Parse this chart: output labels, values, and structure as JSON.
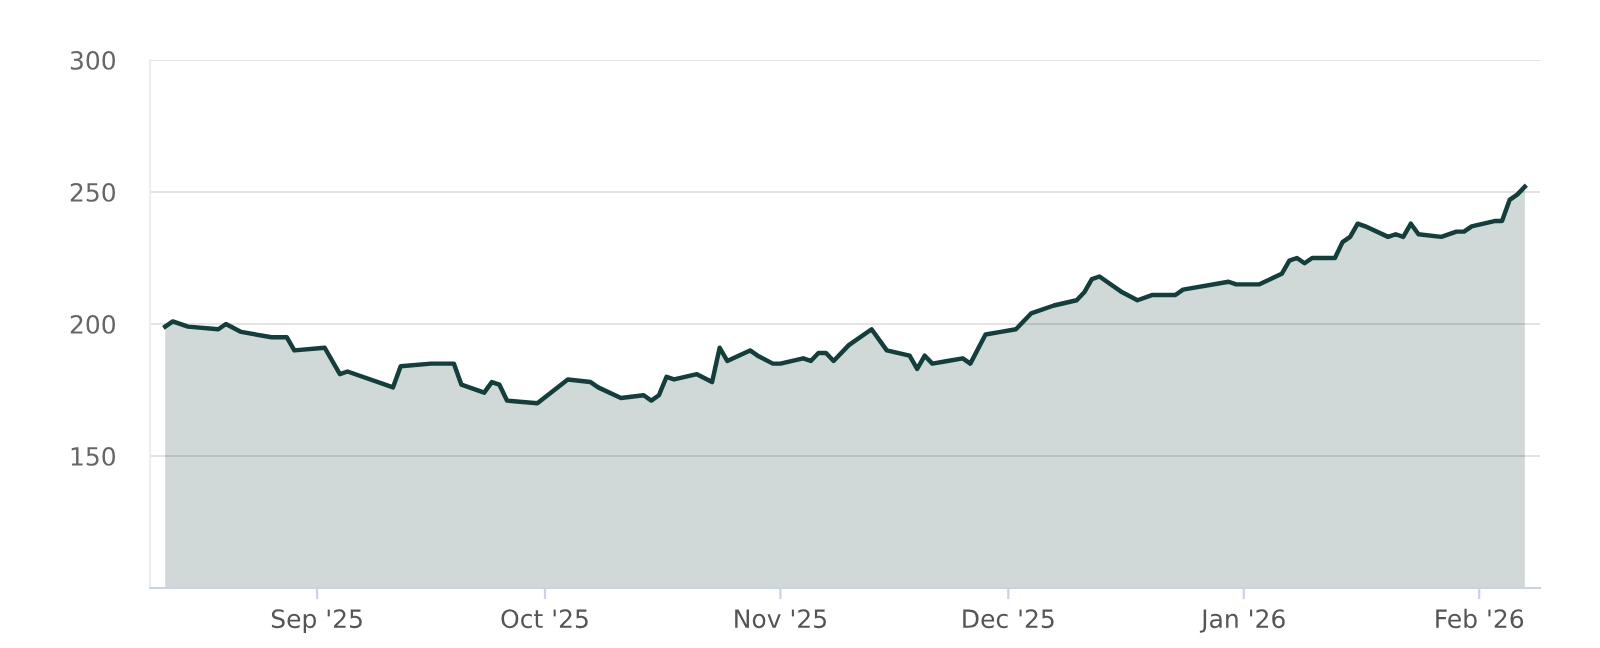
{
  "chart_data": {
    "type": "area",
    "x": [
      "2025-08-12",
      "2025-08-13",
      "2025-08-15",
      "2025-08-19",
      "2025-08-20",
      "2025-08-22",
      "2025-08-26",
      "2025-08-28",
      "2025-08-29",
      "2025-09-02",
      "2025-09-04",
      "2025-09-05",
      "2025-09-11",
      "2025-09-12",
      "2025-09-16",
      "2025-09-18",
      "2025-09-19",
      "2025-09-20",
      "2025-09-23",
      "2025-09-24",
      "2025-09-25",
      "2025-09-26",
      "2025-09-30",
      "2025-10-04",
      "2025-10-07",
      "2025-10-08",
      "2025-10-11",
      "2025-10-14",
      "2025-10-15",
      "2025-10-16",
      "2025-10-17",
      "2025-10-18",
      "2025-10-21",
      "2025-10-23",
      "2025-10-24",
      "2025-10-25",
      "2025-10-28",
      "2025-10-29",
      "2025-10-31",
      "2025-11-01",
      "2025-11-04",
      "2025-11-05",
      "2025-11-06",
      "2025-11-07",
      "2025-11-08",
      "2025-11-10",
      "2025-11-13",
      "2025-11-15",
      "2025-11-18",
      "2025-11-19",
      "2025-11-20",
      "2025-11-21",
      "2025-11-23",
      "2025-11-25",
      "2025-11-26",
      "2025-11-28",
      "2025-11-30",
      "2025-12-02",
      "2025-12-04",
      "2025-12-07",
      "2025-12-10",
      "2025-12-11",
      "2025-12-12",
      "2025-12-13",
      "2025-12-16",
      "2025-12-18",
      "2025-12-20",
      "2025-12-23",
      "2025-12-24",
      "2025-12-30",
      "2025-12-31",
      "2026-01-03",
      "2026-01-06",
      "2026-01-07",
      "2026-01-08",
      "2026-01-09",
      "2026-01-10",
      "2026-01-13",
      "2026-01-14",
      "2026-01-15",
      "2026-01-16",
      "2026-01-17",
      "2026-01-20",
      "2026-01-21",
      "2026-01-22",
      "2026-01-23",
      "2026-01-24",
      "2026-01-27",
      "2026-01-29",
      "2026-01-30",
      "2026-01-31",
      "2026-02-03",
      "2026-02-04",
      "2026-02-05",
      "2026-02-06",
      "2026-02-07"
    ],
    "series": [
      {
        "color": "#123f3b",
        "values": [
          199,
          201,
          199,
          198,
          200,
          197,
          195,
          195,
          190,
          191,
          181,
          182,
          176,
          184,
          185,
          185,
          185,
          177,
          174,
          178,
          177,
          171,
          170,
          179,
          178,
          176,
          172,
          173,
          171,
          173,
          180,
          179,
          181,
          178,
          191,
          186,
          190,
          188,
          185,
          185,
          187,
          186,
          189,
          189,
          186,
          192,
          198,
          190,
          188,
          183,
          188,
          185,
          186,
          187,
          185,
          196,
          197,
          198,
          204,
          207,
          209,
          212,
          217,
          218,
          212,
          209,
          211,
          211,
          213,
          216,
          215,
          215,
          219,
          224,
          225,
          223,
          225,
          225,
          231,
          233,
          238,
          237,
          233,
          234,
          233,
          238,
          234,
          233,
          235,
          235,
          237,
          239,
          239,
          247,
          249,
          252
        ]
      }
    ],
    "xlim": [
      "2025-08-10",
      "2026-02-09"
    ],
    "xticks": [
      {
        "value": "2025-09-01",
        "label": "Sep '25"
      },
      {
        "value": "2025-10-01",
        "label": "Oct '25"
      },
      {
        "value": "2025-11-01",
        "label": "Nov '25"
      },
      {
        "value": "2025-12-01",
        "label": "Dec '25"
      },
      {
        "value": "2026-01-01",
        "label": "Jan '26"
      },
      {
        "value": "2026-02-01",
        "label": "Feb '26"
      }
    ],
    "ylim": [
      100,
      300
    ],
    "yticks": [
      150,
      200,
      250,
      300
    ],
    "grid": "y"
  }
}
